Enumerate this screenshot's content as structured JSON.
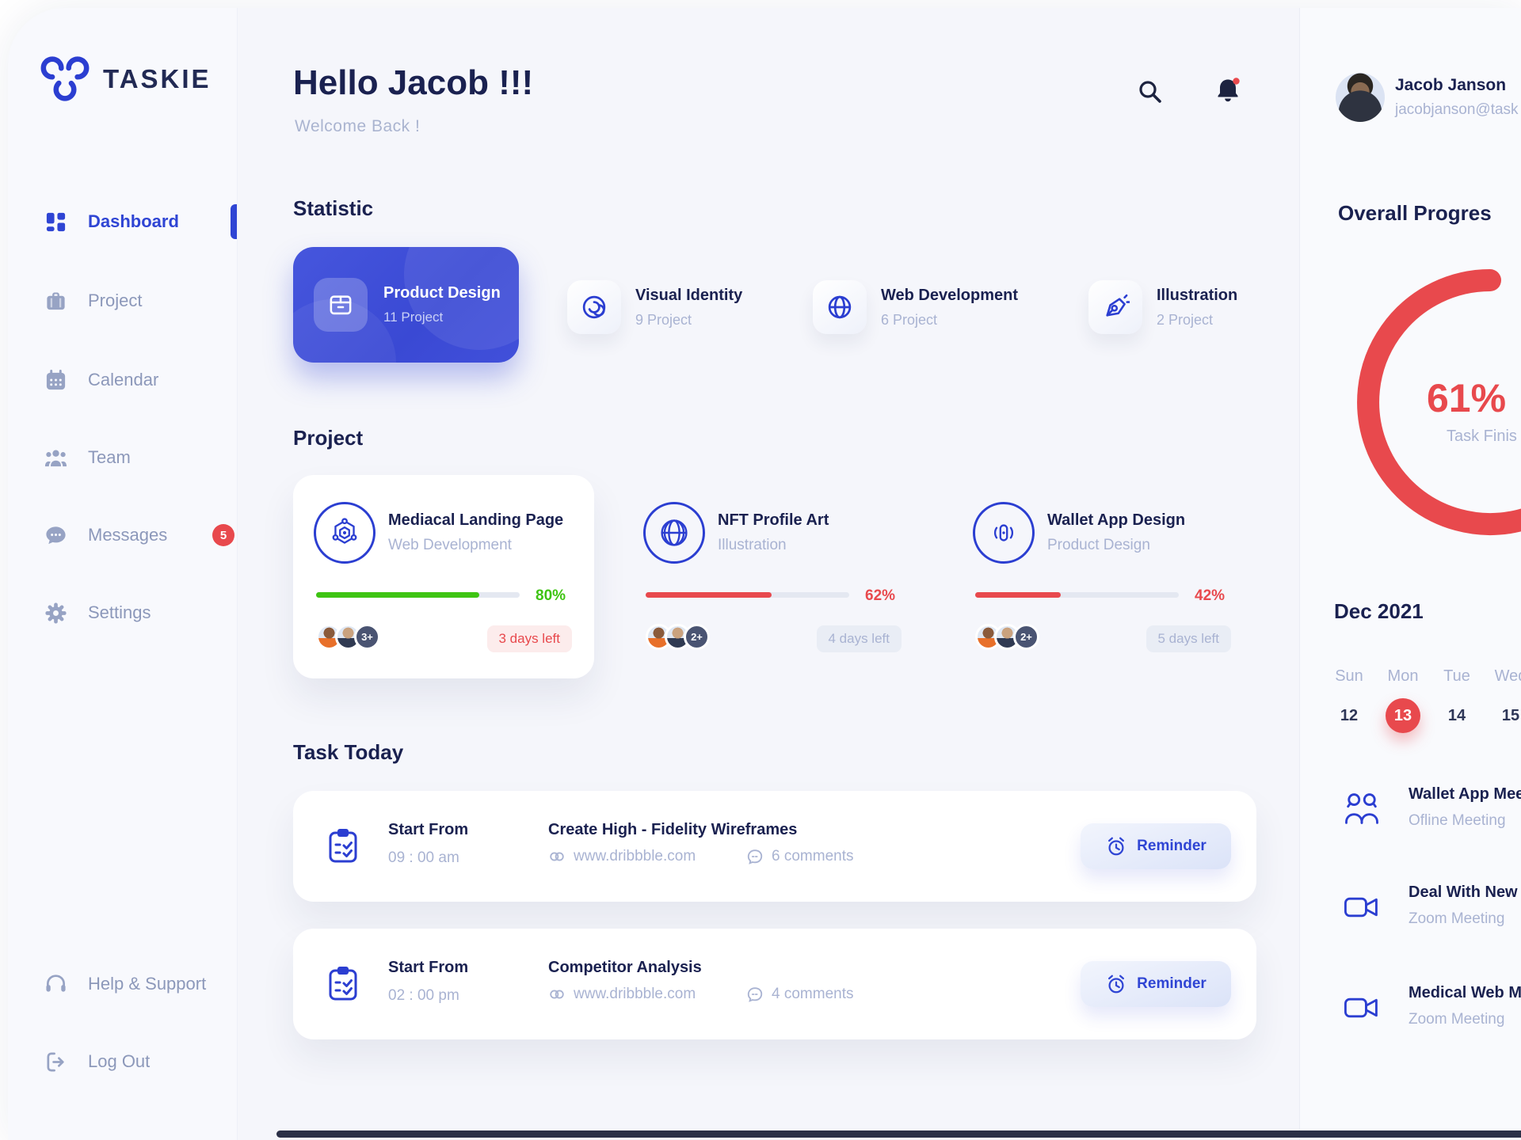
{
  "brand": {
    "name": "TASKIE"
  },
  "colors": {
    "primary_blue": "#2F45D4",
    "navy_text": "#1A2150",
    "muted_text": "#A9B3D2",
    "red": "#E8494D",
    "green": "#3EC412",
    "pink_badge_bg": "#FCECEC",
    "gray_badge_bg": "#E9EDF5"
  },
  "sidebar": {
    "items": [
      {
        "label": "Dashboard",
        "icon": "dashboard-grid-icon",
        "active": true
      },
      {
        "label": "Project",
        "icon": "briefcase-icon"
      },
      {
        "label": "Calendar",
        "icon": "calendar-icon"
      },
      {
        "label": "Team",
        "icon": "team-icon"
      },
      {
        "label": "Messages",
        "icon": "chat-bubble-icon",
        "badge": "5"
      },
      {
        "label": "Settings",
        "icon": "gear-icon"
      }
    ],
    "footer_items": [
      {
        "label": "Help & Support",
        "icon": "headset-icon"
      },
      {
        "label": "Log Out",
        "icon": "logout-icon"
      }
    ]
  },
  "header": {
    "greeting": "Hello Jacob !!!",
    "subtitle": "Welcome Back !",
    "icons": [
      "search-icon",
      "bell-icon"
    ]
  },
  "statistic": {
    "title": "Statistic",
    "cards": [
      {
        "title": "Product Design",
        "count": "11 Project",
        "icon": "box-icon",
        "active": true
      },
      {
        "title": "Visual Identity",
        "count": "9 Project",
        "icon": "swirl-icon"
      },
      {
        "title": "Web Development",
        "count": "6 Project",
        "icon": "globe-icon"
      },
      {
        "title": "Illustration",
        "count": "2 Project",
        "icon": "pen-nib-icon"
      }
    ]
  },
  "projects": {
    "title": "Project",
    "cards": [
      {
        "title": "Mediacal Landing Page",
        "category": "Web Development",
        "icon": "molecule-icon",
        "percent": 80,
        "percent_label": "80%",
        "bar_color": "green",
        "days_left": "3 days left",
        "badge_style": "red",
        "more": "3+"
      },
      {
        "title": "NFT Profile Art",
        "category": "Illustration",
        "icon": "globe-icon",
        "percent": 62,
        "percent_label": "62%",
        "bar_color": "red",
        "days_left": "4 days left",
        "badge_style": "gray",
        "more": "2+"
      },
      {
        "title": "Wallet App Design",
        "category": "Product Design",
        "icon": "wallet-phone-icon",
        "percent": 42,
        "percent_label": "42%",
        "bar_color": "red",
        "days_left": "5 days left",
        "badge_style": "gray",
        "more": "2+"
      }
    ]
  },
  "tasks": {
    "title": "Task Today",
    "items": [
      {
        "start_label": "Start From",
        "time": "09 : 00 am",
        "name": "Create High - Fidelity Wireframes",
        "link": "www.dribbble.com",
        "comments": "6 comments",
        "reminder_label": "Reminder"
      },
      {
        "start_label": "Start From",
        "time": "02 : 00 pm",
        "name": "Competitor Analysis",
        "link": "www.dribbble.com",
        "comments": "4 comments",
        "reminder_label": "Reminder"
      }
    ]
  },
  "profile": {
    "name": "Jacob Janson",
    "email": "jacobjanson@task"
  },
  "overall": {
    "title": "Overall Progres",
    "value": 61,
    "percent_label": "61%",
    "caption": "Task Finis"
  },
  "calendar": {
    "month": "Dec 2021",
    "day_names": [
      "Sun",
      "Mon",
      "Tue",
      "Wed"
    ],
    "dates": [
      "12",
      "13",
      "14",
      "15"
    ],
    "selected_date": "13"
  },
  "meetings": [
    {
      "title": "Wallet App Mee",
      "subtitle": "Ofline Meeting",
      "icon": "people-icon"
    },
    {
      "title": "Deal With New",
      "subtitle": "Zoom Meeting",
      "icon": "video-camera-icon"
    },
    {
      "title": "Medical Web M",
      "subtitle": "Zoom Meeting",
      "icon": "video-camera-icon"
    }
  ]
}
